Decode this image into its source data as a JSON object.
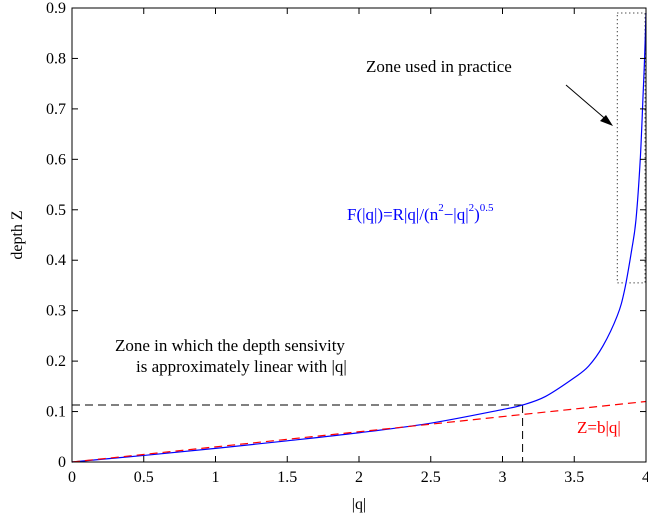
{
  "chart_data": {
    "type": "line",
    "xlabel": "|q|",
    "ylabel": "depth Z",
    "xlim": [
      0,
      4
    ],
    "ylim": [
      0,
      0.9
    ],
    "x_ticks": [
      "0",
      "0.5",
      "1",
      "1.5",
      "2",
      "2.5",
      "3",
      "3.5",
      "4"
    ],
    "y_ticks": [
      "0",
      "0.1",
      "0.2",
      "0.3",
      "0.4",
      "0.5",
      "0.6",
      "0.7",
      "0.8",
      "0.9"
    ],
    "grid": false,
    "series": [
      {
        "name": "F(|q|)=R|q|/(n²−|q|²)^0.5",
        "color": "#0000ff",
        "style": "solid",
        "x": [
          0,
          0.5,
          1.0,
          1.5,
          2.0,
          2.5,
          3.0,
          3.14,
          3.3,
          3.5,
          3.6,
          3.7,
          3.8,
          3.85,
          3.9,
          3.93,
          3.96,
          3.98,
          3.99,
          4.0
        ],
        "y": [
          0,
          0.013,
          0.027,
          0.042,
          0.058,
          0.077,
          0.104,
          0.113,
          0.13,
          0.167,
          0.19,
          0.23,
          0.29,
          0.34,
          0.42,
          0.48,
          0.6,
          0.73,
          0.8,
          0.89
        ]
      },
      {
        "name": "Z=b|q|",
        "color": "#ff0000",
        "style": "dashed",
        "x": [
          0,
          4.0
        ],
        "y": [
          0,
          0.12
        ]
      }
    ],
    "annotations": {
      "curve_label_main": "F(|q|)=R|q|/(n",
      "curve_label_sup1": "2",
      "curve_label_mid": "−|q|",
      "curve_label_sup2": "2",
      "curve_label_end": ")",
      "curve_label_sup3": "0.5",
      "line_label": "Z=b|q|",
      "practice_zone": "Zone used in practice",
      "linear_zone_line1": "Zone in which the depth sensivity",
      "linear_zone_line2": "is approximately linear with |q|"
    },
    "reference_lines": {
      "linear_limit_x": 3.14,
      "linear_limit_y": 0.113,
      "practice_zone_x": [
        3.8,
        4.0
      ],
      "practice_zone_y": [
        0.355,
        0.89
      ]
    }
  }
}
